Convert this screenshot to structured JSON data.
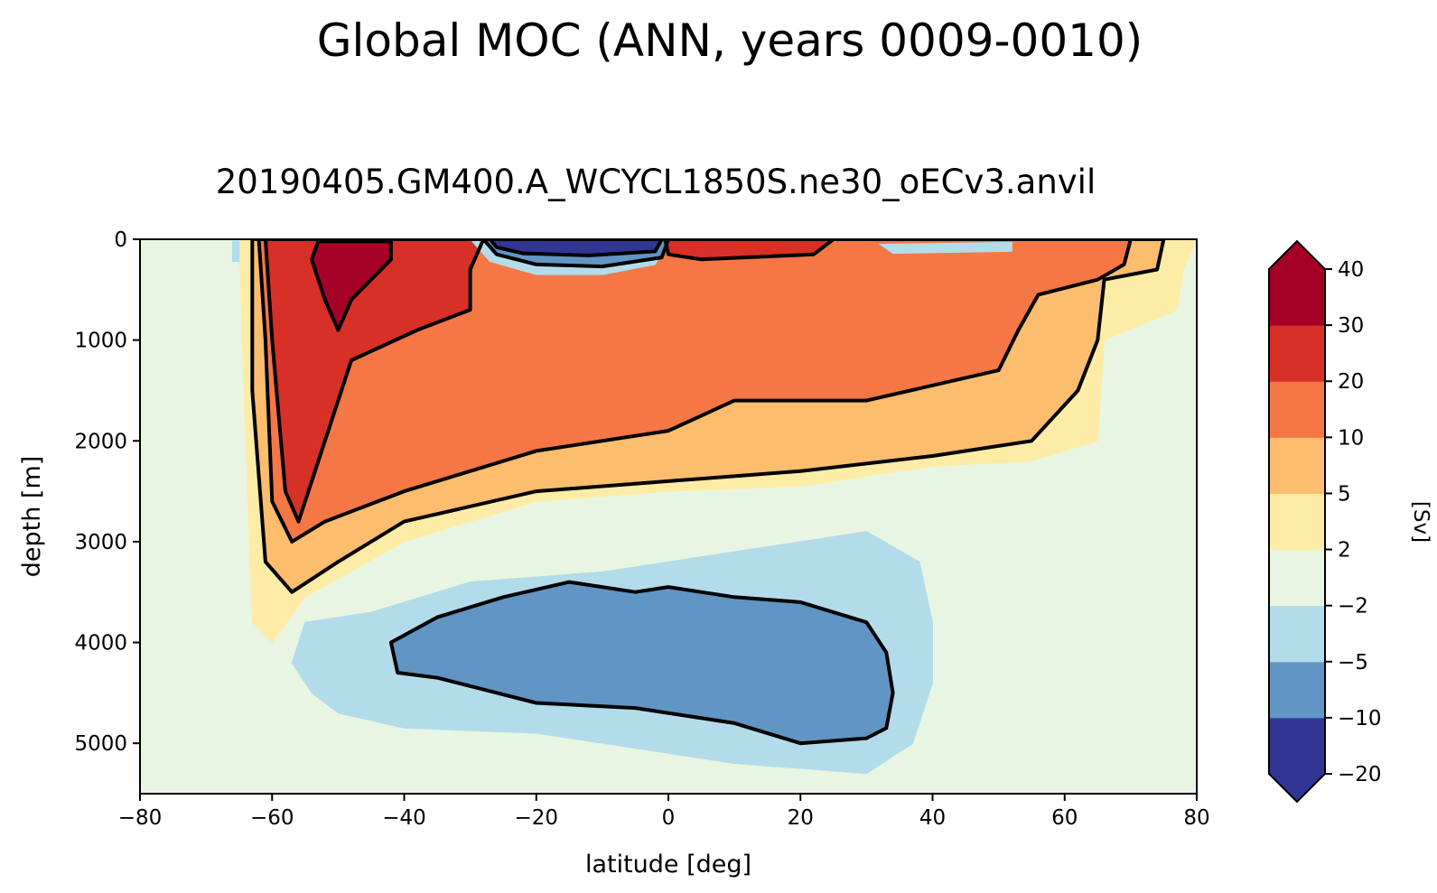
{
  "chart_data": {
    "type": "contourf",
    "suptitle": "Global MOC (ANN, years 0009-0010)",
    "title": "20190405.GM400.A_WCYCL1850S.ne30_oECv3.anvil",
    "xlabel": "latitude [deg]",
    "ylabel": "depth [m]",
    "xlim": [
      -80,
      80
    ],
    "ylim": [
      5500,
      0
    ],
    "xticks": [
      -80,
      -60,
      -40,
      -20,
      0,
      20,
      40,
      60,
      80
    ],
    "xtick_labels": [
      "−80",
      "−60",
      "−40",
      "−20",
      "0",
      "20",
      "40",
      "60",
      "80"
    ],
    "yticks": [
      0,
      1000,
      2000,
      3000,
      4000,
      5000
    ],
    "ytick_labels": [
      "0",
      "1000",
      "2000",
      "3000",
      "4000",
      "5000"
    ],
    "colorbar": {
      "label": "[Sv]",
      "levels": [
        -20,
        -10,
        -5,
        -2,
        2,
        5,
        10,
        20,
        30,
        40
      ],
      "level_labels": [
        "−20",
        "−10",
        "−5",
        "−2",
        "2",
        "5",
        "10",
        "20",
        "30",
        "40"
      ],
      "colors": [
        "#313695",
        "#4575b4",
        "#abd9e9",
        "#e0f3f8",
        "#e6f5e0",
        "#fee090",
        "#fdae61",
        "#f46d43",
        "#d73027",
        "#a50026"
      ],
      "band_colors": [
        "#313695",
        "#6195c3",
        "#b3dcea",
        "#e9f5e3",
        "#fdeca6",
        "#fcbd6e",
        "#f57746",
        "#d73027",
        "#a50026"
      ],
      "extend": "both",
      "under_color": "#313695",
      "over_color": "#a50026"
    },
    "background_level_color": "#e9f5e3",
    "contour_lines": {
      "color": "#000000",
      "levels": [
        -10,
        -5,
        5,
        10,
        20,
        30
      ]
    },
    "regions": [
      {
        "name": "upper-cell-weak",
        "value_range": [
          2,
          5
        ],
        "color": "#fdeca6",
        "points": [
          [
            -65,
            0
          ],
          [
            80,
            0
          ],
          [
            78,
            300
          ],
          [
            77,
            700
          ],
          [
            66,
            1000
          ],
          [
            65,
            2000
          ],
          [
            55,
            2200
          ],
          [
            40,
            2250
          ],
          [
            20,
            2450
          ],
          [
            0,
            2500
          ],
          [
            -20,
            2600
          ],
          [
            -40,
            3000
          ],
          [
            -55,
            3550
          ],
          [
            -60,
            4000
          ],
          [
            -63,
            3800
          ],
          [
            -64,
            2000
          ]
        ]
      },
      {
        "name": "upper-cell-5",
        "value_range": [
          5,
          10
        ],
        "color": "#fcbd6e",
        "points": [
          [
            -63,
            0
          ],
          [
            75,
            0
          ],
          [
            74,
            300
          ],
          [
            66,
            400
          ],
          [
            65,
            1000
          ],
          [
            62,
            1500
          ],
          [
            55,
            2000
          ],
          [
            40,
            2150
          ],
          [
            20,
            2300
          ],
          [
            0,
            2400
          ],
          [
            -20,
            2500
          ],
          [
            -40,
            2800
          ],
          [
            -50,
            3200
          ],
          [
            -57,
            3500
          ],
          [
            -61,
            3200
          ],
          [
            -63,
            1500
          ]
        ]
      },
      {
        "name": "upper-cell-10",
        "value_range": [
          10,
          20
        ],
        "color": "#f57746",
        "points": [
          [
            -62,
            0
          ],
          [
            70,
            0
          ],
          [
            69,
            250
          ],
          [
            65,
            400
          ],
          [
            56,
            550
          ],
          [
            53,
            900
          ],
          [
            50,
            1300
          ],
          [
            30,
            1600
          ],
          [
            10,
            1600
          ],
          [
            0,
            1900
          ],
          [
            -20,
            2100
          ],
          [
            -40,
            2500
          ],
          [
            -52,
            2800
          ],
          [
            -57,
            3000
          ],
          [
            -60,
            2600
          ],
          [
            -61,
            1000
          ]
        ]
      },
      {
        "name": "upper-cell-20",
        "value_range": [
          20,
          30
        ],
        "color": "#d73027",
        "points": [
          [
            -61,
            0
          ],
          [
            -28,
            0
          ],
          [
            -30,
            300
          ],
          [
            -30,
            700
          ],
          [
            -38,
            900
          ],
          [
            -48,
            1200
          ],
          [
            -52,
            2000
          ],
          [
            -56,
            2800
          ],
          [
            -58,
            2500
          ],
          [
            -60,
            1000
          ]
        ]
      },
      {
        "name": "upper-cell-20-north",
        "value_range": [
          20,
          30
        ],
        "color": "#d73027",
        "points": [
          [
            -0.5,
            0
          ],
          [
            25,
            0
          ],
          [
            22,
            150
          ],
          [
            5,
            200
          ],
          [
            0,
            150
          ]
        ]
      },
      {
        "name": "upper-cell-30",
        "value_range": [
          30,
          40
        ],
        "color": "#a50026",
        "points": [
          [
            -53,
            20
          ],
          [
            -42,
            20
          ],
          [
            -42,
            200
          ],
          [
            -48,
            600
          ],
          [
            -50,
            900
          ],
          [
            -52,
            600
          ],
          [
            -54,
            200
          ]
        ]
      },
      {
        "name": "deep-cell-2",
        "value_range": [
          -5,
          -2
        ],
        "color": "#b3dcea",
        "points": [
          [
            -55,
            3800
          ],
          [
            -45,
            3700
          ],
          [
            -30,
            3400
          ],
          [
            -10,
            3300
          ],
          [
            0,
            3200
          ],
          [
            20,
            3000
          ],
          [
            30,
            2900
          ],
          [
            38,
            3200
          ],
          [
            40,
            3800
          ],
          [
            40,
            4400
          ],
          [
            37,
            5000
          ],
          [
            30,
            5300
          ],
          [
            10,
            5200
          ],
          [
            -20,
            4900
          ],
          [
            -40,
            4850
          ],
          [
            -50,
            4700
          ],
          [
            -54,
            4500
          ],
          [
            -57,
            4200
          ]
        ]
      },
      {
        "name": "deep-cell-5",
        "value_range": [
          -10,
          -5
        ],
        "color": "#6195c3",
        "points": [
          [
            -42,
            4000
          ],
          [
            -35,
            3750
          ],
          [
            -25,
            3550
          ],
          [
            -15,
            3400
          ],
          [
            -5,
            3500
          ],
          [
            0,
            3450
          ],
          [
            10,
            3550
          ],
          [
            20,
            3600
          ],
          [
            30,
            3800
          ],
          [
            33,
            4100
          ],
          [
            34,
            4500
          ],
          [
            33,
            4850
          ],
          [
            30,
            4950
          ],
          [
            20,
            5000
          ],
          [
            10,
            4800
          ],
          [
            -5,
            4650
          ],
          [
            -20,
            4600
          ],
          [
            -35,
            4350
          ],
          [
            -41,
            4300
          ]
        ]
      },
      {
        "name": "shallow-negative-weak",
        "value_range": [
          -5,
          -2
        ],
        "color": "#b3dcea",
        "points": [
          [
            -30,
            0
          ],
          [
            0,
            0
          ],
          [
            -2,
            250
          ],
          [
            -10,
            350
          ],
          [
            -20,
            350
          ],
          [
            -27,
            220
          ]
        ]
      },
      {
        "name": "shallow-negative",
        "value_range": [
          -10,
          -5
        ],
        "color": "#6195c3",
        "points": [
          [
            -28,
            0
          ],
          [
            0,
            0
          ],
          [
            -1,
            180
          ],
          [
            -10,
            270
          ],
          [
            -20,
            250
          ],
          [
            -26,
            150
          ]
        ]
      },
      {
        "name": "shallow-negative-strong",
        "value_range": [
          -20,
          -10
        ],
        "color": "#313695",
        "points": [
          [
            -27,
            0
          ],
          [
            -1,
            0
          ],
          [
            -2,
            120
          ],
          [
            -12,
            160
          ],
          [
            -22,
            140
          ],
          [
            -26,
            80
          ]
        ]
      },
      {
        "name": "surface-north-negative",
        "value_range": [
          -5,
          -2
        ],
        "color": "#b3dcea",
        "points": [
          [
            32,
            50
          ],
          [
            52,
            30
          ],
          [
            52,
            120
          ],
          [
            34,
            140
          ]
        ]
      },
      {
        "name": "surface-far-south-negative",
        "value_range": [
          -5,
          -2
        ],
        "color": "#b3dcea",
        "points": [
          [
            -66,
            20
          ],
          [
            -65,
            20
          ],
          [
            -65,
            220
          ],
          [
            -66,
            220
          ]
        ]
      }
    ]
  }
}
